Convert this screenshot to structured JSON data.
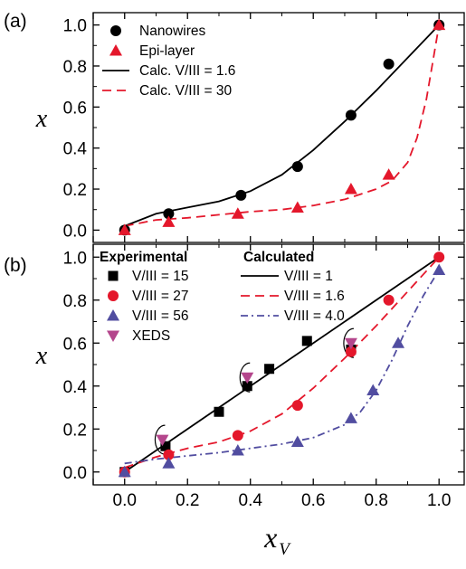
{
  "figure": {
    "panel_a_label": "(a)",
    "panel_b_label": "(b)",
    "xlabel_main": "x",
    "xlabel_sub": "V",
    "ylabel_a": "x",
    "ylabel_b": "x",
    "x_ticks": [
      "0.0",
      "0.2",
      "0.4",
      "0.6",
      "0.8",
      "1.0"
    ],
    "y_ticks": [
      "0.0",
      "0.2",
      "0.4",
      "0.6",
      "0.8",
      "1.0"
    ]
  },
  "chart_data": [
    {
      "panel": "(a)",
      "type": "scatter",
      "xlabel": "xV",
      "ylabel": "x",
      "xlim": [
        -0.1,
        1.08
      ],
      "ylim": [
        -0.06,
        1.06
      ],
      "legend_position": "top-left",
      "series": [
        {
          "name": "Nanowires",
          "kind": "scatter",
          "marker": "circle",
          "color": "#000000",
          "x": [
            0.0,
            0.14,
            0.37,
            0.55,
            0.72,
            0.84,
            1.0
          ],
          "y": [
            0.0,
            0.08,
            0.17,
            0.31,
            0.56,
            0.81,
            1.0
          ]
        },
        {
          "name": "Epi-layer",
          "kind": "scatter",
          "marker": "triangle",
          "color": "#e4172b",
          "x": [
            0.0,
            0.14,
            0.36,
            0.55,
            0.72,
            0.84,
            1.0
          ],
          "y": [
            0.0,
            0.04,
            0.08,
            0.11,
            0.2,
            0.27,
            1.0
          ]
        },
        {
          "name": "Calc. V/III = 1.6",
          "kind": "line",
          "dash": "solid",
          "color": "#000000",
          "x": [
            0.0,
            0.1,
            0.2,
            0.3,
            0.4,
            0.5,
            0.6,
            0.7,
            0.8,
            0.9,
            1.0
          ],
          "y": [
            0.02,
            0.08,
            0.11,
            0.14,
            0.19,
            0.27,
            0.39,
            0.53,
            0.68,
            0.84,
            1.0
          ]
        },
        {
          "name": "Calc. V/III = 30",
          "kind": "line",
          "dash": "dash",
          "color": "#e4172b",
          "x": [
            0.0,
            0.1,
            0.2,
            0.3,
            0.4,
            0.5,
            0.6,
            0.7,
            0.8,
            0.85,
            0.9,
            0.93,
            0.96,
            0.98,
            1.0
          ],
          "y": [
            0.02,
            0.05,
            0.06,
            0.075,
            0.09,
            0.1,
            0.12,
            0.15,
            0.2,
            0.24,
            0.33,
            0.45,
            0.64,
            0.82,
            1.0
          ]
        }
      ]
    },
    {
      "panel": "(b)",
      "type": "scatter",
      "xlabel": "xV",
      "ylabel": "x",
      "xlim": [
        -0.1,
        1.08
      ],
      "ylim": [
        -0.06,
        1.06
      ],
      "legend_position": "top-left",
      "legend_headers": [
        "Experimental",
        "Calculated"
      ],
      "series": [
        {
          "name": "V/III = 15",
          "kind": "scatter",
          "marker": "square",
          "color": "#000000",
          "x": [
            0.0,
            0.13,
            0.3,
            0.39,
            0.46,
            0.58,
            0.72
          ],
          "y": [
            0.0,
            0.12,
            0.28,
            0.4,
            0.48,
            0.61,
            0.57
          ]
        },
        {
          "name": "V/III = 27",
          "kind": "scatter",
          "marker": "circle",
          "color": "#e4172b",
          "x": [
            0.0,
            0.14,
            0.36,
            0.55,
            0.72,
            0.84,
            1.0
          ],
          "y": [
            0.0,
            0.08,
            0.17,
            0.31,
            0.56,
            0.8,
            1.0
          ]
        },
        {
          "name": "V/III = 56",
          "kind": "scatter",
          "marker": "triangle",
          "color": "#514da0",
          "x": [
            0.0,
            0.14,
            0.36,
            0.55,
            0.72,
            0.79,
            0.87,
            1.0
          ],
          "y": [
            0.0,
            0.04,
            0.1,
            0.14,
            0.25,
            0.38,
            0.6,
            0.94
          ]
        },
        {
          "name": "XEDS",
          "kind": "scatter",
          "marker": "triangle-down",
          "color": "#b4468c",
          "x": [
            0.12,
            0.39,
            0.72
          ],
          "y": [
            0.15,
            0.44,
            0.6
          ]
        },
        {
          "name": "V/III = 1",
          "kind": "line",
          "dash": "solid",
          "color": "#000000",
          "x": [
            0.0,
            1.0
          ],
          "y": [
            0.0,
            1.0
          ]
        },
        {
          "name": "V/III = 1.6",
          "kind": "line",
          "dash": "dash",
          "color": "#e4172b",
          "x": [
            0.0,
            0.1,
            0.2,
            0.3,
            0.4,
            0.5,
            0.6,
            0.7,
            0.8,
            0.9,
            1.0
          ],
          "y": [
            0.02,
            0.07,
            0.11,
            0.14,
            0.19,
            0.27,
            0.39,
            0.53,
            0.68,
            0.84,
            1.0
          ]
        },
        {
          "name": "V/III = 4.0",
          "kind": "line",
          "dash": "dashdot",
          "color": "#514da0",
          "x": [
            0.0,
            0.1,
            0.2,
            0.3,
            0.4,
            0.5,
            0.6,
            0.7,
            0.75,
            0.8,
            0.85,
            0.9,
            0.95,
            1.0
          ],
          "y": [
            0.04,
            0.06,
            0.075,
            0.09,
            0.11,
            0.13,
            0.16,
            0.22,
            0.28,
            0.38,
            0.52,
            0.68,
            0.82,
            0.94
          ]
        }
      ],
      "annotations": [
        {
          "kind": "arc",
          "x": 0.12,
          "y": 0.15
        },
        {
          "kind": "arc",
          "x": 0.39,
          "y": 0.44
        },
        {
          "kind": "arc",
          "x": 0.72,
          "y": 0.6
        }
      ]
    }
  ]
}
